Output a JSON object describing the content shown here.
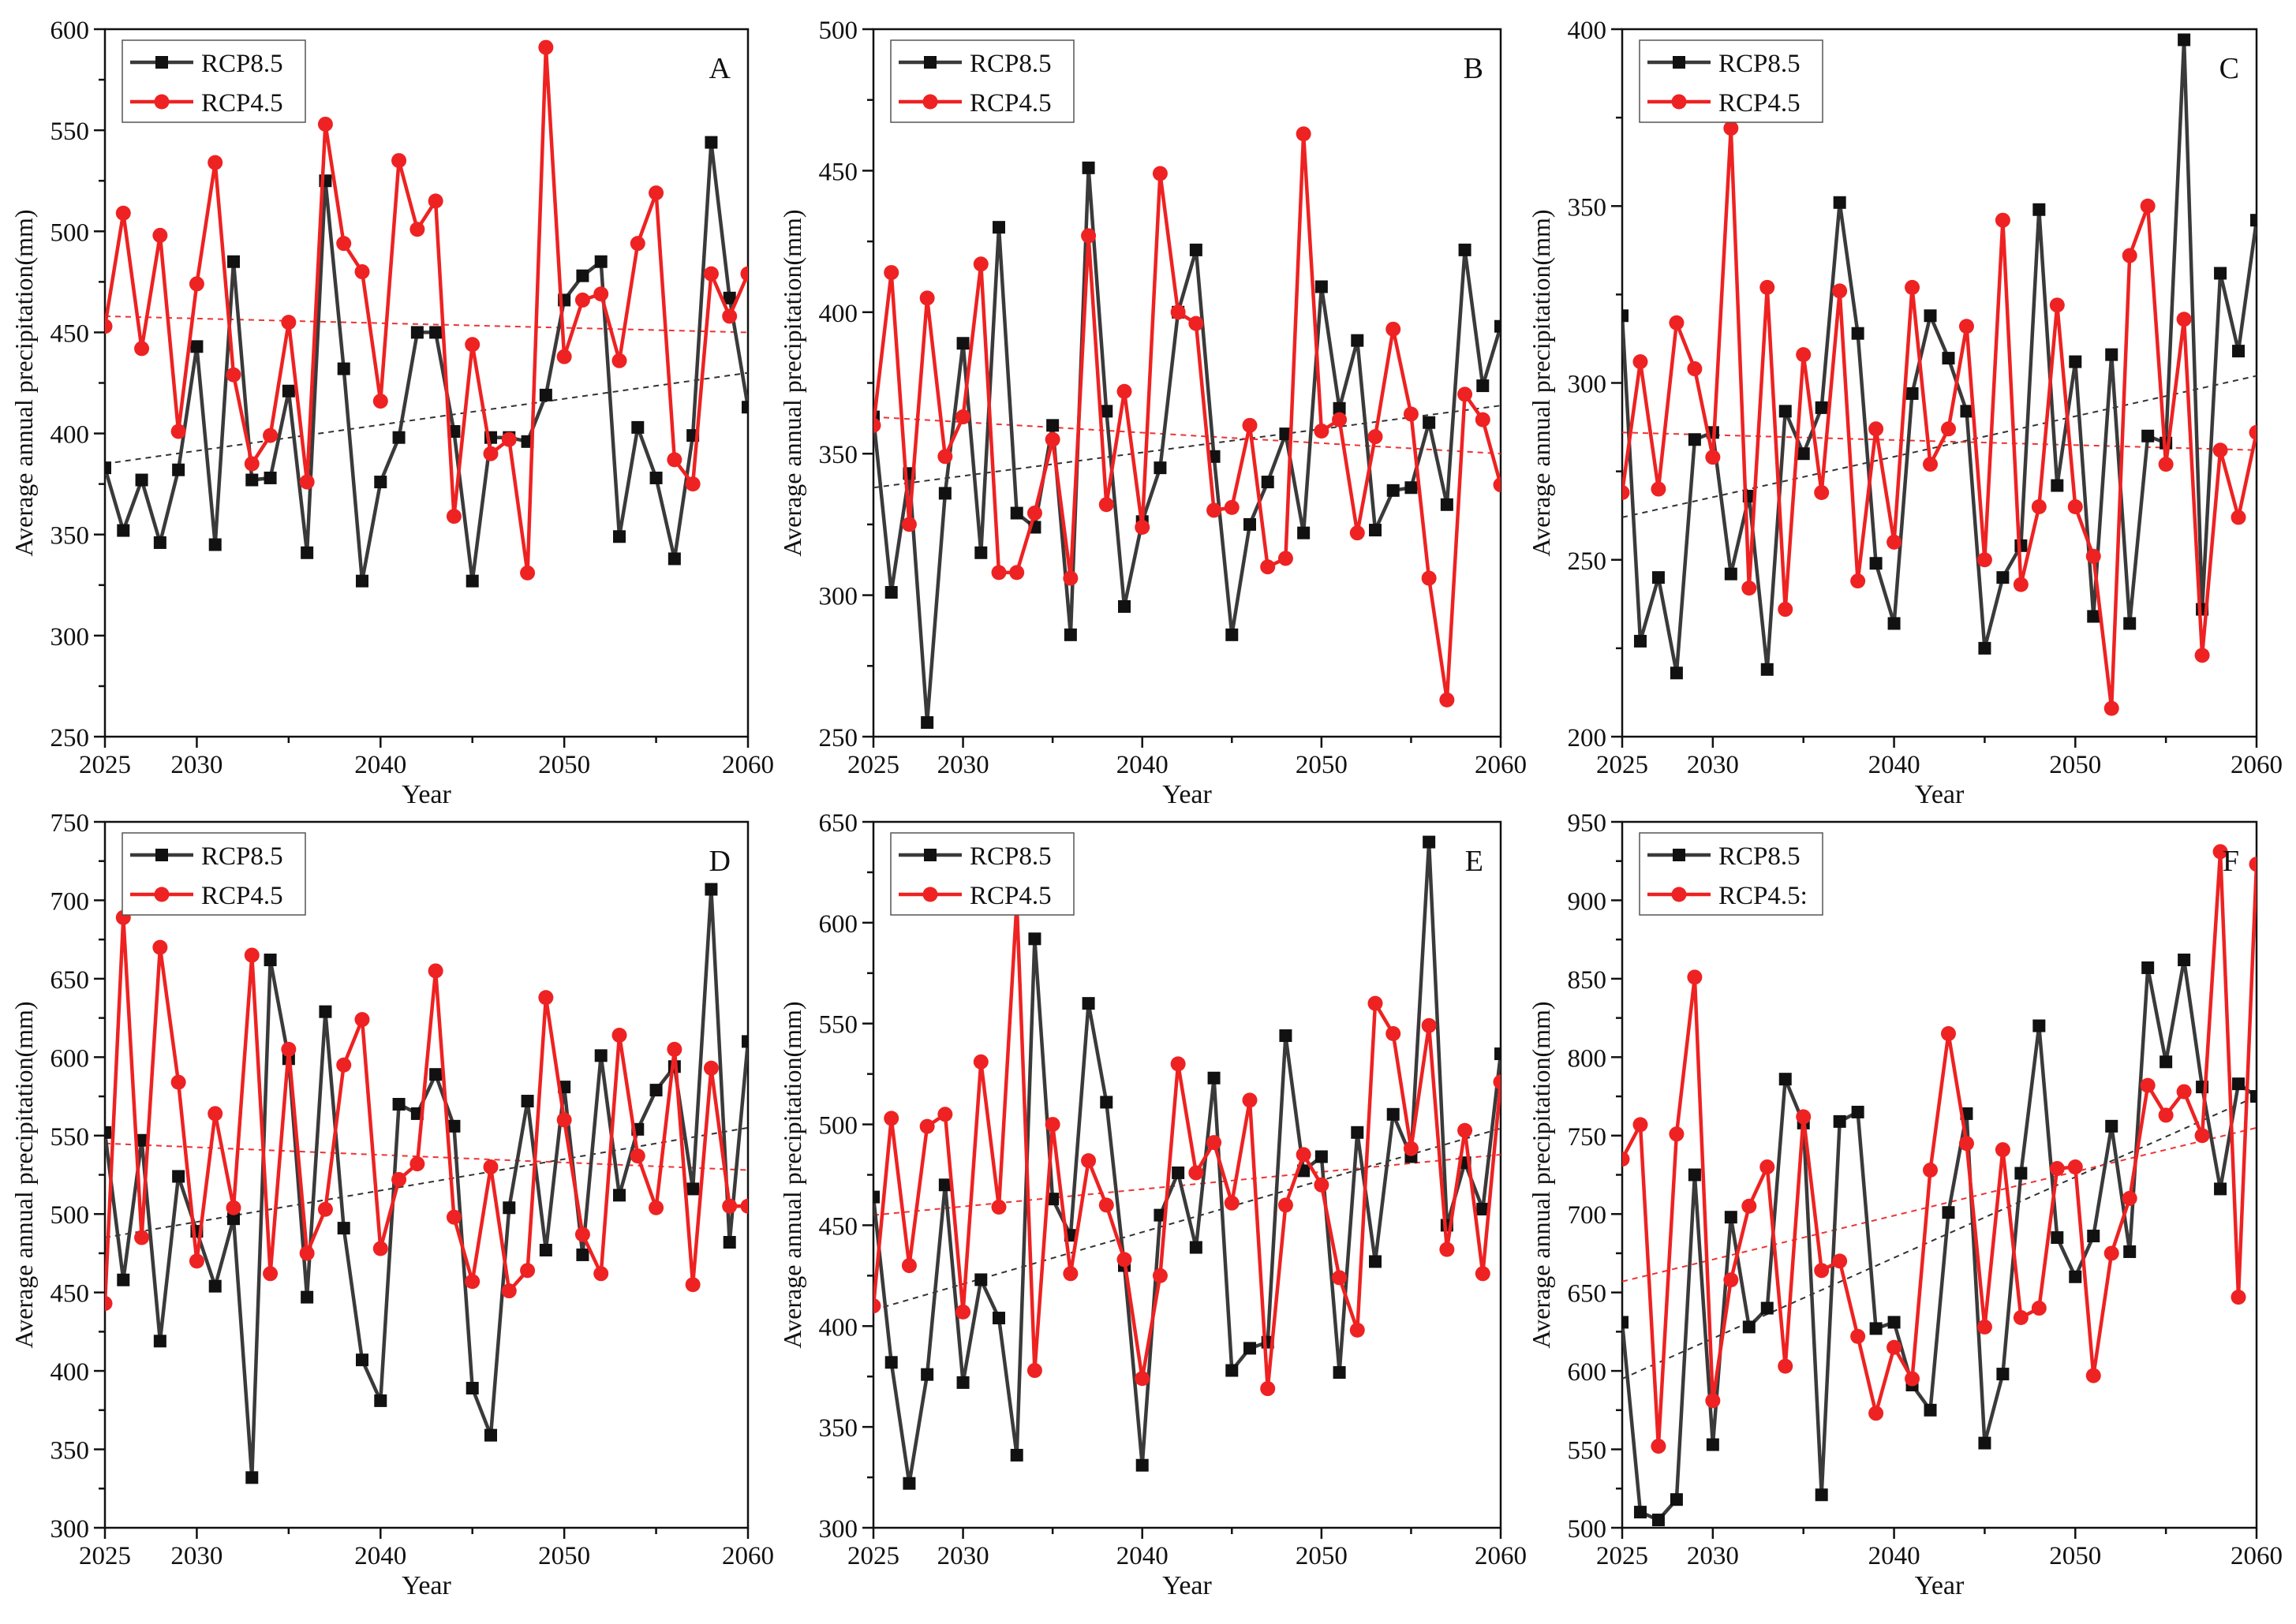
{
  "colors": {
    "rcp85": "#3a3a3a",
    "rcp45": "#ee2222",
    "trend85": "#333333",
    "trend45": "#ee3333",
    "axis": "#111111"
  },
  "chart_data": [
    {
      "type": "line",
      "panel_label": "A",
      "xlabel": "Year",
      "ylabel": "Average annual precipitation(mm)",
      "xlim": [
        2025,
        2060
      ],
      "ylim": [
        250,
        600
      ],
      "xticks": [
        2025,
        2030,
        2040,
        2050,
        2060
      ],
      "yticks": [
        250,
        300,
        350,
        400,
        450,
        500,
        550,
        600
      ],
      "legend": [
        "RCP8.5",
        "RCP4.5"
      ],
      "series": [
        {
          "name": "RCP8.5",
          "x_start": 2025,
          "values": [
            383,
            352,
            377,
            346,
            382,
            443,
            345,
            485,
            377,
            378,
            421,
            341,
            525,
            432,
            327,
            376,
            398,
            450,
            450,
            401,
            327,
            398,
            398,
            396,
            419,
            466,
            478,
            485,
            349,
            403,
            378,
            338,
            399,
            544,
            467,
            413
          ]
        },
        {
          "name": "RCP4.5",
          "x_start": 2025,
          "values": [
            453,
            509,
            442,
            498,
            401,
            474,
            534,
            429,
            385,
            399,
            455,
            376,
            553,
            494,
            480,
            416,
            535,
            501,
            515,
            359,
            444,
            390,
            397,
            331,
            591,
            438,
            466,
            469,
            436,
            494,
            519,
            387,
            375,
            479,
            458,
            479
          ]
        }
      ],
      "trends": [
        {
          "name": "RCP8.5",
          "from": [
            2025,
            385
          ],
          "to": [
            2060,
            430
          ]
        },
        {
          "name": "RCP4.5",
          "from": [
            2025,
            458
          ],
          "to": [
            2060,
            450
          ]
        }
      ]
    },
    {
      "type": "line",
      "panel_label": "B",
      "xlabel": "Year",
      "ylabel": "Average annual precipitation(mm)",
      "xlim": [
        2025,
        2060
      ],
      "ylim": [
        250,
        500
      ],
      "xticks": [
        2025,
        2030,
        2040,
        2050,
        2060
      ],
      "yticks": [
        250,
        300,
        350,
        400,
        450,
        500
      ],
      "legend": [
        "RCP8.5",
        "RCP4.5"
      ],
      "series": [
        {
          "name": "RCP8.5",
          "x_start": 2025,
          "values": [
            363,
            301,
            343,
            255,
            336,
            389,
            315,
            430,
            329,
            324,
            360,
            286,
            451,
            365,
            296,
            326,
            345,
            400,
            422,
            349,
            286,
            325,
            340,
            357,
            322,
            409,
            366,
            390,
            323,
            337,
            338,
            361,
            332,
            422,
            374,
            395
          ]
        },
        {
          "name": "RCP4.5",
          "x_start": 2025,
          "values": [
            360,
            414,
            325,
            405,
            349,
            363,
            417,
            308,
            308,
            329,
            355,
            306,
            427,
            332,
            372,
            324,
            449,
            400,
            396,
            330,
            331,
            360,
            310,
            313,
            463,
            358,
            362,
            322,
            356,
            394,
            364,
            306,
            263,
            371,
            362,
            339
          ]
        }
      ],
      "trends": [
        {
          "name": "RCP8.5",
          "from": [
            2025,
            338
          ],
          "to": [
            2060,
            367
          ]
        },
        {
          "name": "RCP4.5",
          "from": [
            2025,
            363
          ],
          "to": [
            2060,
            350
          ]
        }
      ]
    },
    {
      "type": "line",
      "panel_label": "C",
      "xlabel": "Year",
      "ylabel": "Average annual precipitation(mm)",
      "xlim": [
        2025,
        2060
      ],
      "ylim": [
        200,
        400
      ],
      "xticks": [
        2025,
        2030,
        2040,
        2050,
        2060
      ],
      "yticks": [
        200,
        250,
        300,
        350,
        400
      ],
      "legend": [
        "RCP8.5",
        "RCP4.5"
      ],
      "series": [
        {
          "name": "RCP8.5",
          "x_start": 2025,
          "values": [
            319,
            227,
            245,
            218,
            284,
            286,
            246,
            268,
            219,
            292,
            280,
            293,
            351,
            314,
            249,
            232,
            297,
            319,
            307,
            292,
            225,
            245,
            254,
            349,
            271,
            306,
            234,
            308,
            232,
            285,
            283,
            397,
            236,
            331,
            309,
            346
          ]
        },
        {
          "name": "RCP4.5",
          "x_start": 2025,
          "values": [
            269,
            306,
            270,
            317,
            304,
            279,
            372,
            242,
            327,
            236,
            308,
            269,
            326,
            244,
            287,
            255,
            327,
            277,
            287,
            316,
            250,
            346,
            243,
            265,
            322,
            265,
            251,
            208,
            336,
            350,
            277,
            318,
            223,
            281,
            262,
            286
          ]
        }
      ],
      "trends": [
        {
          "name": "RCP8.5",
          "from": [
            2025,
            262
          ],
          "to": [
            2060,
            302
          ]
        },
        {
          "name": "RCP4.5",
          "from": [
            2025,
            286
          ],
          "to": [
            2060,
            281
          ]
        }
      ]
    },
    {
      "type": "line",
      "panel_label": "D",
      "xlabel": "Year",
      "ylabel": "Average annual precipitation(mm)",
      "xlim": [
        2025,
        2060
      ],
      "ylim": [
        300,
        750
      ],
      "xticks": [
        2025,
        2030,
        2040,
        2050,
        2060
      ],
      "yticks": [
        300,
        350,
        400,
        450,
        500,
        550,
        600,
        650,
        700,
        750
      ],
      "legend": [
        "RCP8.5",
        "RCP4.5"
      ],
      "series": [
        {
          "name": "RCP8.5",
          "x_start": 2025,
          "values": [
            552,
            458,
            547,
            419,
            524,
            489,
            454,
            497,
            332,
            662,
            599,
            447,
            629,
            491,
            407,
            381,
            570,
            564,
            589,
            556,
            389,
            359,
            504,
            572,
            477,
            581,
            474,
            601,
            512,
            554,
            579,
            594,
            516,
            707,
            482,
            610
          ]
        },
        {
          "name": "RCP4.5",
          "x_start": 2025,
          "values": [
            443,
            689,
            485,
            670,
            584,
            470,
            564,
            504,
            665,
            462,
            605,
            475,
            503,
            595,
            624,
            478,
            522,
            532,
            655,
            498,
            457,
            530,
            451,
            464,
            638,
            560,
            487,
            462,
            614,
            537,
            504,
            605,
            455,
            593,
            505,
            505
          ]
        }
      ],
      "trends": [
        {
          "name": "RCP8.5",
          "from": [
            2025,
            485
          ],
          "to": [
            2060,
            555
          ]
        },
        {
          "name": "RCP4.5",
          "from": [
            2025,
            545
          ],
          "to": [
            2060,
            528
          ]
        }
      ]
    },
    {
      "type": "line",
      "panel_label": "E",
      "xlabel": "Year",
      "ylabel": "Average annual precipitation(mm)",
      "xlim": [
        2025,
        2060
      ],
      "ylim": [
        300,
        650
      ],
      "xticks": [
        2025,
        2030,
        2040,
        2050,
        2060
      ],
      "yticks": [
        300,
        350,
        400,
        450,
        500,
        550,
        600,
        650
      ],
      "legend": [
        "RCP8.5",
        "RCP4.5"
      ],
      "series": [
        {
          "name": "RCP8.5",
          "x_start": 2025,
          "values": [
            464,
            382,
            322,
            376,
            470,
            372,
            423,
            404,
            336,
            592,
            463,
            445,
            560,
            511,
            430,
            331,
            455,
            476,
            439,
            523,
            378,
            389,
            392,
            544,
            477,
            484,
            377,
            496,
            432,
            505,
            484,
            640,
            450,
            481,
            458,
            535
          ]
        },
        {
          "name": "RCP4.5",
          "x_start": 2025,
          "values": [
            410,
            503,
            430,
            499,
            505,
            407,
            531,
            459,
            610,
            378,
            500,
            426,
            482,
            460,
            433,
            374,
            425,
            530,
            476,
            491,
            461,
            512,
            369,
            460,
            485,
            470,
            424,
            398,
            560,
            545,
            488,
            549,
            438,
            497,
            426,
            521
          ]
        }
      ],
      "trends": [
        {
          "name": "RCP8.5",
          "from": [
            2025,
            408
          ],
          "to": [
            2060,
            498
          ]
        },
        {
          "name": "RCP4.5",
          "from": [
            2025,
            455
          ],
          "to": [
            2060,
            485
          ]
        }
      ]
    },
    {
      "type": "line",
      "panel_label": "F",
      "xlabel": "Year",
      "ylabel": "Average annual precipitation(mm)",
      "xlim": [
        2025,
        2060
      ],
      "ylim": [
        500,
        950
      ],
      "xticks": [
        2025,
        2030,
        2040,
        2050,
        2060
      ],
      "yticks": [
        500,
        550,
        600,
        650,
        700,
        750,
        800,
        850,
        900,
        950
      ],
      "legend": [
        "RCP8.5",
        "RCP4.5:"
      ],
      "series": [
        {
          "name": "RCP8.5",
          "x_start": 2025,
          "values": [
            631,
            510,
            505,
            518,
            725,
            553,
            698,
            628,
            640,
            786,
            758,
            521,
            759,
            765,
            627,
            631,
            591,
            575,
            701,
            764,
            554,
            598,
            726,
            820,
            685,
            660,
            686,
            756,
            676,
            857,
            797,
            862,
            781,
            716,
            783,
            775
          ]
        },
        {
          "name": "RCP4.5",
          "x_start": 2025,
          "values": [
            735,
            757,
            552,
            751,
            851,
            581,
            658,
            705,
            730,
            603,
            762,
            664,
            670,
            622,
            573,
            615,
            595,
            728,
            815,
            745,
            628,
            741,
            634,
            640,
            729,
            730,
            597,
            675,
            710,
            782,
            763,
            778,
            750,
            931,
            647,
            923
          ]
        }
      ],
      "trends": [
        {
          "name": "RCP8.5",
          "from": [
            2025,
            595
          ],
          "to": [
            2060,
            775
          ]
        },
        {
          "name": "RCP4.5",
          "from": [
            2025,
            657
          ],
          "to": [
            2060,
            755
          ]
        }
      ]
    }
  ]
}
